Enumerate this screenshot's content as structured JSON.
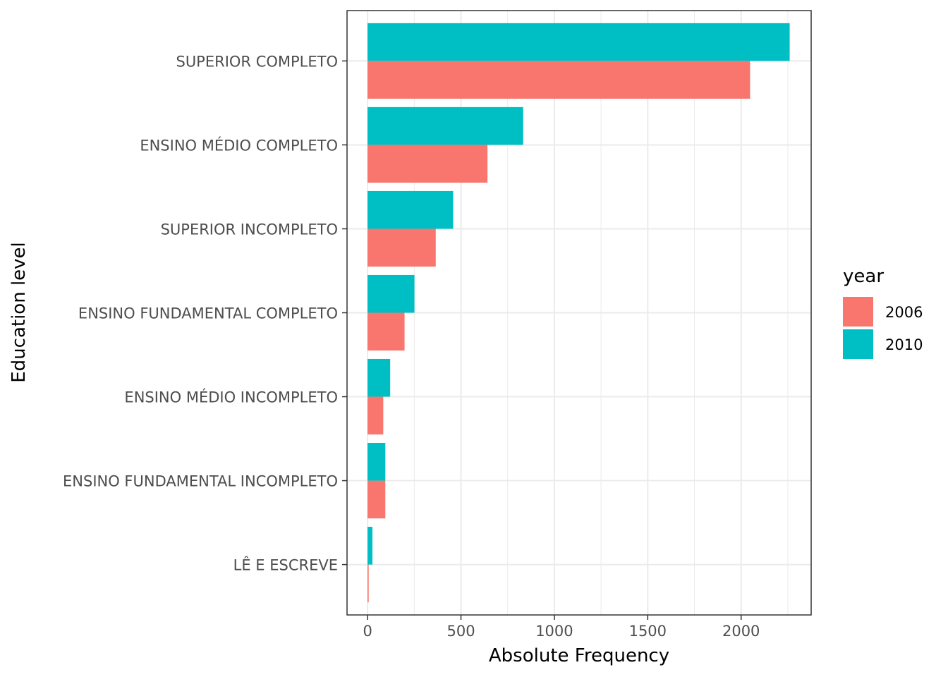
{
  "chart_data": {
    "type": "bar",
    "orientation": "horizontal",
    "xlabel": "Absolute Frequency",
    "ylabel": "Education level",
    "categories": [
      "SUPERIOR COMPLETO",
      "ENSINO MÉDIO COMPLETO",
      "SUPERIOR INCOMPLETO",
      "ENSINO FUNDAMENTAL COMPLETO",
      "ENSINO MÉDIO INCOMPLETO",
      "ENSINO FUNDAMENTAL INCOMPLETO",
      "LÊ E ESCREVE"
    ],
    "series": [
      {
        "name": "2006",
        "color": "#F8766D",
        "values": [
          2048,
          642,
          365,
          198,
          84,
          95,
          6
        ]
      },
      {
        "name": "2010",
        "color": "#00BFC4",
        "values": [
          2260,
          833,
          458,
          251,
          121,
          95,
          26
        ]
      }
    ],
    "xlim": [
      -110,
      2375
    ],
    "xticks": [
      0,
      500,
      1000,
      1500,
      2000
    ],
    "grid": true,
    "legend": {
      "title": "year",
      "position": "right"
    }
  }
}
